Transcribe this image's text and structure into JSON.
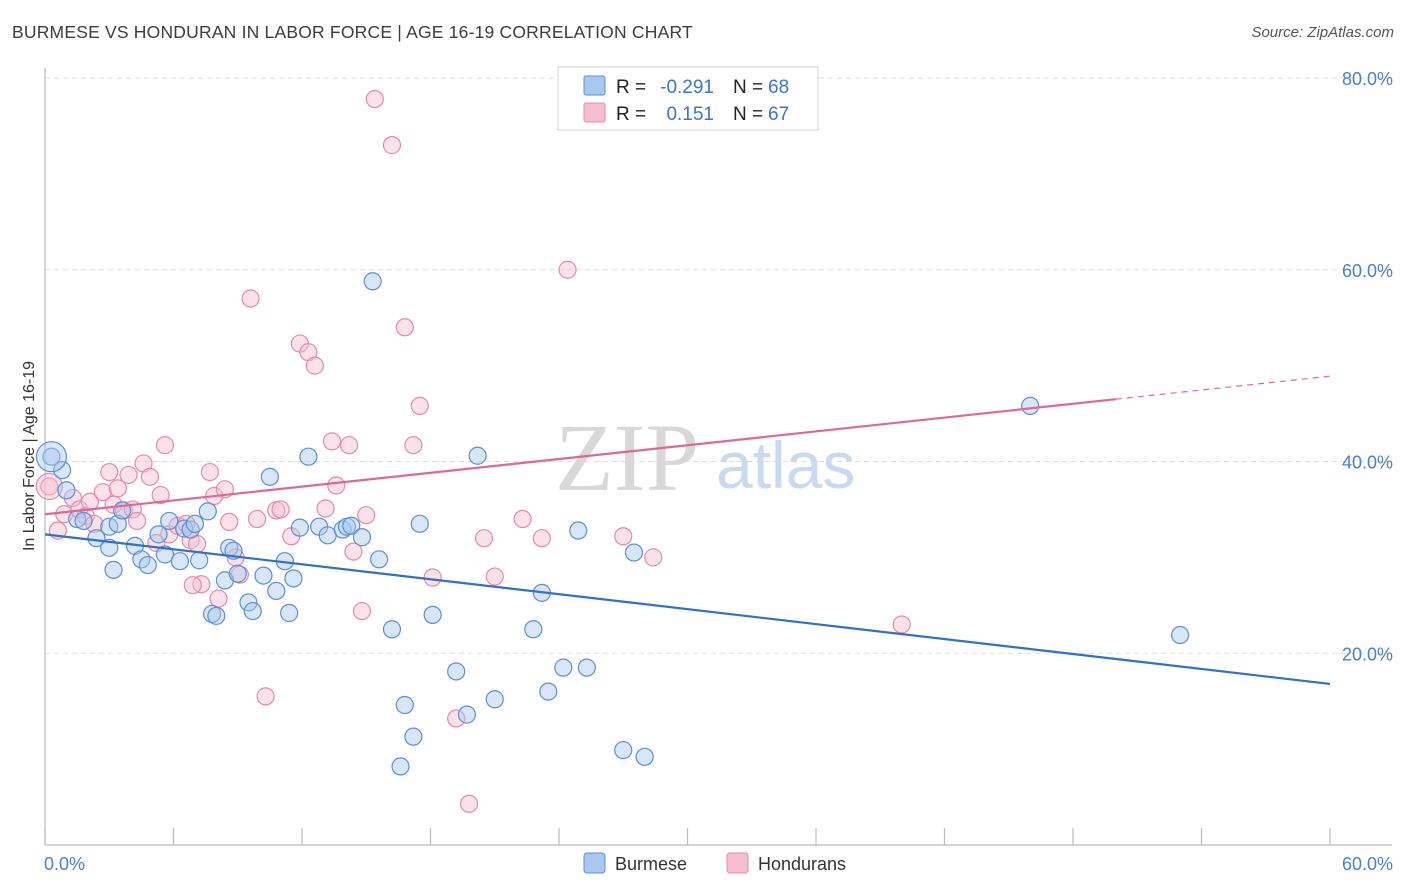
{
  "title": "BURMESE VS HONDURAN IN LABOR FORCE | AGE 16-19 CORRELATION CHART",
  "source": "Source: ZipAtlas.com",
  "watermark": {
    "zip": "ZIP",
    "atlas": "atlas"
  },
  "colors": {
    "burmese_fill": "#a9c8f0",
    "burmese_stroke": "#5b8fd6",
    "burmese_line": "#2f6fd0",
    "honduran_fill": "#f6bfd0",
    "honduran_stroke": "#e889a8",
    "honduran_line": "#e06890",
    "tick_text": "#4a7fd0",
    "grid": "#dddddd"
  },
  "legend": {
    "rows": [
      {
        "r_label": "R =",
        "r_value": "-0.291",
        "n_label": "N =",
        "n_value": "68"
      },
      {
        "r_label": "R =",
        "r_value": "0.151",
        "n_label": "N =",
        "n_value": "67"
      }
    ]
  },
  "bottom_legend": [
    "Burmese",
    "Hondurans"
  ],
  "chart_data": {
    "type": "scatter",
    "title": "BURMESE VS HONDURAN IN LABOR FORCE | AGE 16-19 CORRELATION CHART",
    "xlabel": "",
    "ylabel": "In Labor Force | Age 16-19",
    "xlim": [
      0,
      60
    ],
    "ylim": [
      0,
      80
    ],
    "x_tick_labels": [
      "0.0%",
      "60.0%"
    ],
    "y_tick_labels": [
      "20.0%",
      "40.0%",
      "60.0%",
      "80.0%"
    ],
    "y_ticks": [
      20,
      40,
      60,
      80
    ],
    "grid": true,
    "legend_position": "top-center",
    "series": [
      {
        "name": "Burmese",
        "r": -0.291,
        "n": 68,
        "trend": {
          "x": [
            0,
            60
          ],
          "y": [
            32.4,
            16.8
          ]
        },
        "points": [
          [
            0.3,
            40.5
          ],
          [
            0.8,
            39.1
          ],
          [
            1.0,
            37.0
          ],
          [
            1.5,
            34.0
          ],
          [
            1.8,
            33.8
          ],
          [
            2.4,
            32.0
          ],
          [
            3.0,
            33.2
          ],
          [
            3.0,
            31.0
          ],
          [
            3.2,
            28.7
          ],
          [
            3.4,
            33.5
          ],
          [
            3.6,
            34.9
          ],
          [
            4.2,
            31.2
          ],
          [
            4.5,
            29.8
          ],
          [
            4.8,
            29.2
          ],
          [
            5.3,
            32.4
          ],
          [
            5.6,
            30.3
          ],
          [
            5.8,
            33.8
          ],
          [
            6.3,
            29.6
          ],
          [
            6.5,
            33.0
          ],
          [
            6.8,
            32.9
          ],
          [
            7.0,
            33.5
          ],
          [
            7.2,
            29.7
          ],
          [
            7.6,
            34.8
          ],
          [
            7.8,
            24.1
          ],
          [
            8.0,
            23.9
          ],
          [
            8.4,
            27.6
          ],
          [
            8.6,
            31.0
          ],
          [
            8.8,
            30.7
          ],
          [
            9.0,
            28.3
          ],
          [
            9.5,
            25.3
          ],
          [
            9.7,
            24.4
          ],
          [
            10.2,
            28.1
          ],
          [
            10.5,
            38.4
          ],
          [
            10.8,
            26.5
          ],
          [
            11.2,
            29.6
          ],
          [
            11.4,
            24.2
          ],
          [
            11.6,
            27.8
          ],
          [
            11.9,
            33.1
          ],
          [
            12.3,
            40.5
          ],
          [
            12.8,
            33.2
          ],
          [
            13.2,
            32.3
          ],
          [
            13.9,
            32.9
          ],
          [
            14.1,
            33.2
          ],
          [
            14.3,
            33.3
          ],
          [
            14.8,
            32.1
          ],
          [
            15.3,
            58.8
          ],
          [
            15.6,
            29.8
          ],
          [
            16.2,
            22.5
          ],
          [
            16.8,
            14.6
          ],
          [
            17.2,
            11.3
          ],
          [
            17.5,
            33.5
          ],
          [
            18.1,
            24.0
          ],
          [
            19.2,
            18.1
          ],
          [
            19.7,
            13.6
          ],
          [
            20.2,
            40.6
          ],
          [
            21.0,
            15.2
          ],
          [
            22.8,
            22.5
          ],
          [
            23.2,
            26.3
          ],
          [
            23.5,
            16.0
          ],
          [
            24.2,
            18.5
          ],
          [
            24.9,
            32.8
          ],
          [
            25.3,
            18.5
          ],
          [
            27.0,
            9.9
          ],
          [
            27.5,
            30.5
          ],
          [
            28.0,
            9.2
          ],
          [
            46.0,
            45.8
          ],
          [
            53.0,
            21.9
          ],
          [
            16.6,
            8.2
          ]
        ]
      },
      {
        "name": "Hondurans",
        "r": 0.151,
        "n": 67,
        "trend": {
          "x": [
            0,
            50
          ],
          "y": [
            34.5,
            46.5
          ]
        },
        "trend_extension": {
          "x": [
            50,
            60
          ],
          "y": [
            46.5,
            48.9
          ]
        },
        "points": [
          [
            0.2,
            37.4
          ],
          [
            0.6,
            32.8
          ],
          [
            0.9,
            34.5
          ],
          [
            1.3,
            36.2
          ],
          [
            1.6,
            35.0
          ],
          [
            1.9,
            34.3
          ],
          [
            2.1,
            35.8
          ],
          [
            2.3,
            33.5
          ],
          [
            2.7,
            36.8
          ],
          [
            3.0,
            38.9
          ],
          [
            3.2,
            35.5
          ],
          [
            3.4,
            37.2
          ],
          [
            3.7,
            34.9
          ],
          [
            3.9,
            38.6
          ],
          [
            4.1,
            35.0
          ],
          [
            4.6,
            39.8
          ],
          [
            4.9,
            38.4
          ],
          [
            5.2,
            31.5
          ],
          [
            5.4,
            36.5
          ],
          [
            5.6,
            41.7
          ],
          [
            5.8,
            32.4
          ],
          [
            6.2,
            33.3
          ],
          [
            6.6,
            33.5
          ],
          [
            6.8,
            31.8
          ],
          [
            7.1,
            31.4
          ],
          [
            7.3,
            27.2
          ],
          [
            7.7,
            38.9
          ],
          [
            7.9,
            36.4
          ],
          [
            8.1,
            25.7
          ],
          [
            8.4,
            37.1
          ],
          [
            8.6,
            33.7
          ],
          [
            8.9,
            30.0
          ],
          [
            9.1,
            28.2
          ],
          [
            9.6,
            57.0
          ],
          [
            9.9,
            34.0
          ],
          [
            10.3,
            15.5
          ],
          [
            10.8,
            34.9
          ],
          [
            11.0,
            35.0
          ],
          [
            11.5,
            32.2
          ],
          [
            11.9,
            52.3
          ],
          [
            12.3,
            51.4
          ],
          [
            12.6,
            50.0
          ],
          [
            13.1,
            35.1
          ],
          [
            13.4,
            42.1
          ],
          [
            13.6,
            37.5
          ],
          [
            14.2,
            41.7
          ],
          [
            14.4,
            30.6
          ],
          [
            14.8,
            24.4
          ],
          [
            15.0,
            34.4
          ],
          [
            15.4,
            77.8
          ],
          [
            16.2,
            73.0
          ],
          [
            16.8,
            54.0
          ],
          [
            17.2,
            41.7
          ],
          [
            17.5,
            45.8
          ],
          [
            18.1,
            27.9
          ],
          [
            19.2,
            13.2
          ],
          [
            19.8,
            4.3
          ],
          [
            20.5,
            32.0
          ],
          [
            21.0,
            28.0
          ],
          [
            22.3,
            34.0
          ],
          [
            23.2,
            32.0
          ],
          [
            24.4,
            60.0
          ],
          [
            27.0,
            32.2
          ],
          [
            28.4,
            30.0
          ],
          [
            40.0,
            23.0
          ],
          [
            4.3,
            33.8
          ],
          [
            6.9,
            27.1
          ]
        ]
      }
    ]
  }
}
